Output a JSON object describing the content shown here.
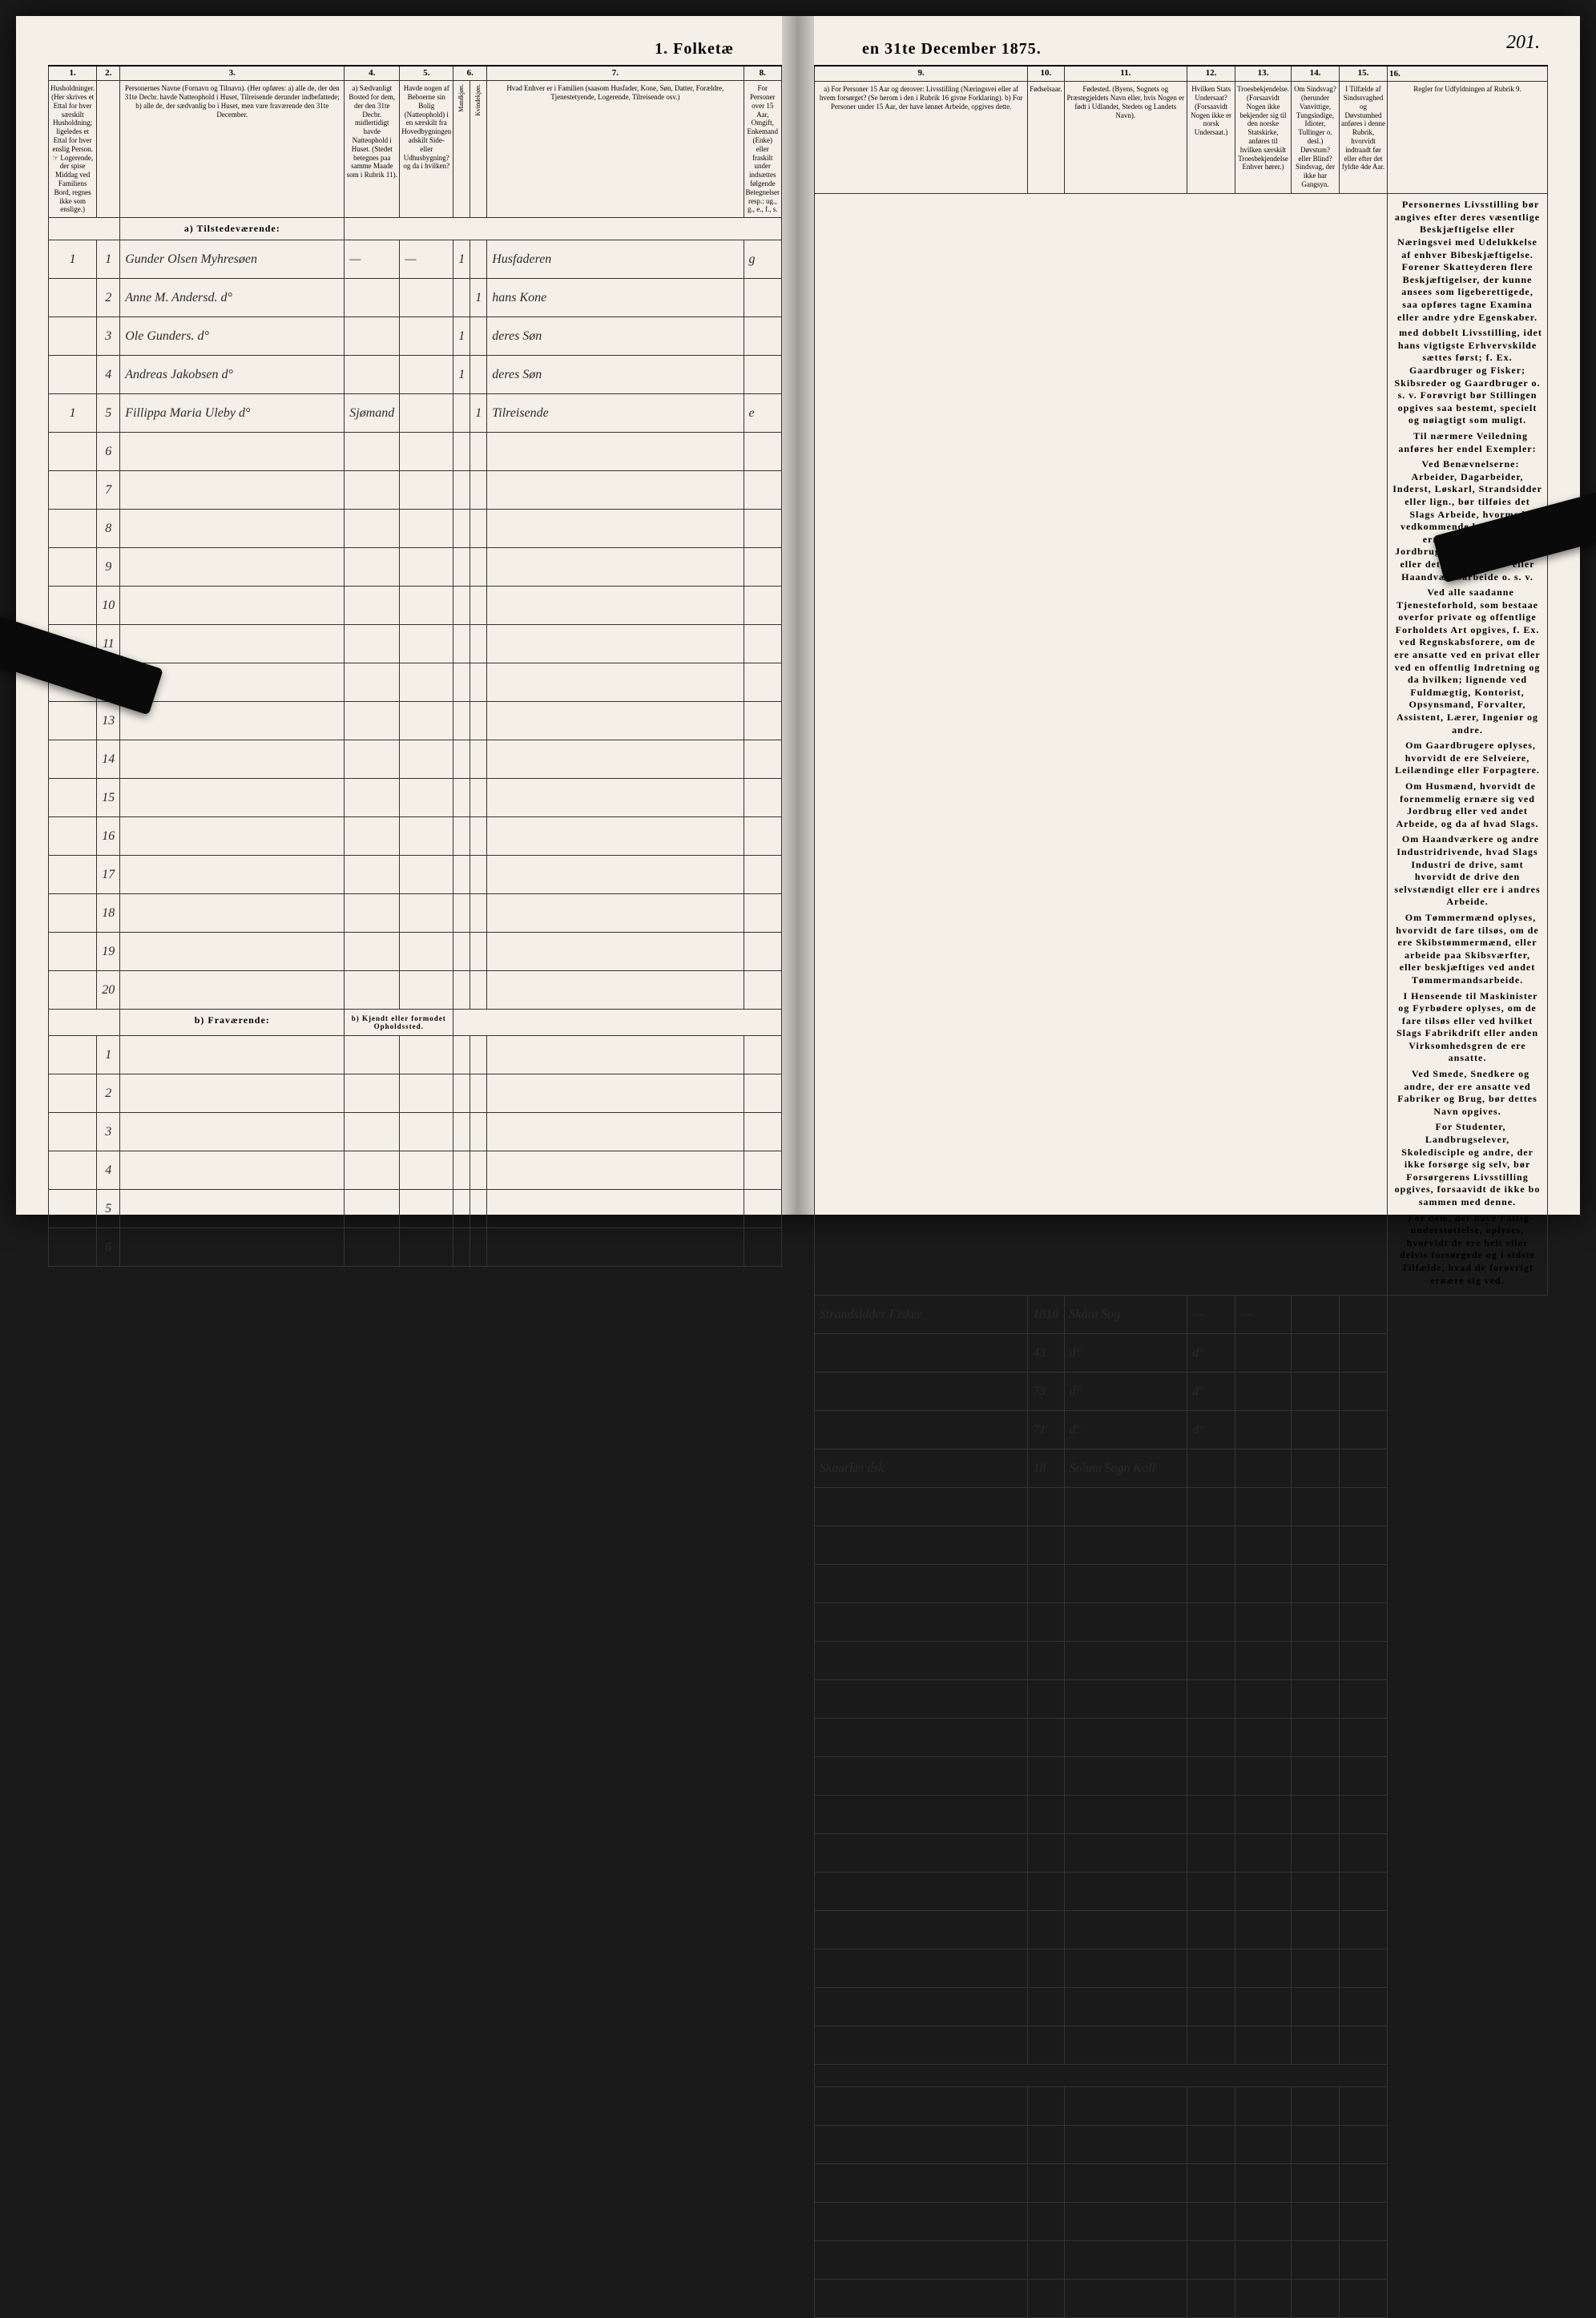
{
  "title_left": "1. Folketæ",
  "title_right": "en 31te December 1875.",
  "page_number": "201.",
  "columns_left": [
    "1.",
    "2.",
    "3.",
    "4.",
    "5.",
    "6.",
    "7.",
    "8."
  ],
  "columns_right": [
    "9.",
    "10.",
    "11.",
    "12.",
    "13.",
    "14.",
    "15.",
    "16."
  ],
  "headers_left": {
    "c1": "Husholdninger.\n(Her skrives et Ettal for hver særskilt Husholdning; ligeledes et Ettal for hver enslig Person.\n☞ Logerende, der spise Middag ved Familiens Bord, regnes ikke som enslige.)",
    "c2": "",
    "c3": "Personernes Navne (Fornavn og Tilnavn).\n(Her opføres:\na) alle de, der den 31te Decbr. havde Natteophold i Huset, Tilreisende derunder indbefattede;\nb) alle de, der sædvanlig bo i Huset, men vare fraværende den 31te December.",
    "c4": "a) Sædvanligt Bosted for dem, der den 31te Decbr. midlertidigt havde Natteophold i Huset.\n(Stedet betegnes paa samme Maade som i Rubrik 11).",
    "c5": "Havde nogen af Beboerne sin Bolig (Natteophold) i en særskilt fra Hovedbygningen adskilt Side- eller Udhusbygning? og da i hvilken?",
    "c6": "Kjøn.\n(Her sættes et Ettal i vedkommende Rubrik).",
    "c6a": "Mandkjøn.",
    "c6b": "Kvindekjøn.",
    "c7": "Hvad Enhver er i Familien\n(saasom Husfader, Kone, Søn, Datter, Forældre, Tjenestetyende, Logerende, Tilreisende osv.)",
    "c8": "For Personer over 15 Aar, Omgift, Enkemand (Enke) eller fraskilt under indsættes følgende Betegnelser resp.: ug., g., e., f., s."
  },
  "headers_right": {
    "c9": "a) For Personer 15 Aar og derover: Livsstilling (Næringsvei eller af hvem forsørget? (Se herom i den i Rubrik 16 givne Forklaring).\nb) For Personer under 15 Aar, der have lønnet Arbeide, opgives dette.",
    "c10": "Fødselsaar.",
    "c11": "Fødested.\n(Byens, Sognets og Præstegjeldets Navn eller, hvis Nogen er født i Udlandet, Stedets og Landets Navn).",
    "c12": "Hvilken Stats Undersaat?\n(Forsaavidt Nogen ikke er norsk Undersaat.)",
    "c13": "Troesbekjendelse.\n(Forsaavidt Nogen ikke bekjender sig til den norske Statskirke, anføres til hvilken særskilt Troesbekjendelse Enhver hører.)",
    "c14": "Om Sindsvag?\n(herunder Vanvittige, Tungsindige, Idioter, Tullinger o. desl.) Døvstum? eller Blind? Sindsvag, der ikke har Gangsyn.",
    "c15": "I Tilfælde af Sindssvaghed og Døvstumhed anføres i denne Rubrik, hvorvidt indtraadt før eller efter det fyldte 4de Aar.",
    "c16": "Regler for Udfyldningen af Rubrik 9."
  },
  "section_a": "a) Tilstedeværende:",
  "section_b": "b) Fraværende:",
  "section_b_note": "b) Kjendt eller formodet Opholdssted.",
  "rows": [
    {
      "hh": "1",
      "n": "1",
      "name": "Gunder Olsen Myhresøen",
      "c4": "—",
      "c5": "—",
      "m": "1",
      "k": "",
      "rel": "Husfaderen",
      "st": "g",
      "occ": "Strandsidder Fisker",
      "yr": "1816",
      "bp": "Skåtø Sog",
      "us": "—",
      "tb": "—"
    },
    {
      "hh": "",
      "n": "2",
      "name": "Anne M. Andersd.   d°",
      "c4": "",
      "c5": "",
      "m": "",
      "k": "1",
      "rel": "hans Kone",
      "st": "",
      "occ": "",
      "yr": "43",
      "bp": "d°",
      "us": "d°",
      "tb": ""
    },
    {
      "hh": "",
      "n": "3",
      "name": "Ole Gunders.   d°",
      "c4": "",
      "c5": "",
      "m": "1",
      "k": "",
      "rel": "deres Søn",
      "st": "",
      "occ": "",
      "yr": "73",
      "bp": "d°",
      "us": "d°",
      "tb": ""
    },
    {
      "hh": "",
      "n": "4",
      "name": "Andreas Jakobsen   d°",
      "c4": "",
      "c5": "",
      "m": "1",
      "k": "",
      "rel": "deres Søn",
      "st": "",
      "occ": "",
      "yr": "71",
      "bp": "d°",
      "us": "d°",
      "tb": ""
    },
    {
      "hh": "1",
      "n": "5",
      "name": "Fillippa Maria Uleby   d°",
      "c4": "Sjømand",
      "c5": "",
      "m": "",
      "k": "1",
      "rel": "Tilreisende",
      "st": "e",
      "occ": "Skaarkri dsk",
      "yr": "18",
      "bp": "Solum Sogn Koll",
      "us": "",
      "tb": ""
    }
  ],
  "empty_rows_a": [
    6,
    7,
    8,
    9,
    10,
    11,
    12,
    13,
    14,
    15,
    16,
    17,
    18,
    19,
    20
  ],
  "empty_rows_b": [
    1,
    2,
    3,
    4,
    5,
    6
  ],
  "rules_text": [
    "Personernes Livsstilling bør angives efter deres væsentlige Beskjæftigelse eller Næringsvei med Udelukkelse af enhver Bibeskjæftigelse. Forener Skatteyderen flere Beskjæftigelser, der kunne ansees som ligeberettigede, saa opføres tagne Examina eller andre ydre Egenskaber.",
    "med <b>dobbelt Livsstilling</b>, idet hans vigtigste Erhvervskilde sættes først; f. Ex. Gaardbruger og Fisker; Skibsreder og Gaardbruger o. s. v. Forøvrigt bør Stillingen opgives saa <b>bestemt, specielt og nøiagtigt</b> som muligt.",
    "Til nærmere Veiledning anføres her endel Exempler:",
    "Ved Benævnelserne: <b>Arbeider, Dagarbeider, Inderst, Løskarl, Strandsidder</b> eller lign., bør tilføies det Slags <b>Arbeide</b>, hvormed vedkommende hovedsagelig ernærer sig; f. Ex. Jordbrugsarbeide, Veiarbeide eller det Slags Fabrik- eller Haandværksarbeide o. s. v.",
    "Ved alle saadanne Tjenesteforhold, som bestaae overfor private og offentlige Forholdets Art opgives, f. Ex. ved Regnskabsforere, om de ere ansatte ved en privat eller ved en offentlig Indretning og da hvilken; lignende ved Fuldmægtig, Kontorist, Opsynsmand, Forvalter, Assistent, Lærer, Ingeniør og andre.",
    "Om <b>Gaardbrugere</b> oplyses, hvorvidt de ere Selveiere, Leilændinge eller Forpagtere.",
    "Om <b>Husmænd</b>, hvorvidt de fornemmelig ernære sig ved Jordbrug eller ved andet Arbeide, og da af hvad Slags.",
    "Om <b>Haandværkere og andre Industridrivende</b>, hvad Slags Industri de drive, samt hvorvidt de drive den selvstændigt eller ere i andres Arbeide.",
    "Om <b>Tømmermænd</b> oplyses, hvorvidt de fare tilsøs, om de ere Skibstømmermænd, eller arbeide paa Skibsværfter, eller beskjæftiges ved andet Tømmermandsarbeide.",
    "I Henseende til <b>Maskinister og Fyrbødere</b> oplyses, om de fare tilsøs eller ved hvilket Slags Fabrikdrift eller anden Virksomhedsgren de ere ansatte.",
    "<b>Ved Smede, Snedkere og andre</b>, der ere ansatte ved Fabriker og Brug, bør dettes Navn opgives.",
    "For <b>Studenter, Landbrugselever, Skoledisciple</b> og andre, der ikke forsørge sig selv, bør <b>Forsørgerens Livsstilling</b> opgives, forsaavidt de ikke bo sammen med denne.",
    "For dem, der have <b>Fattig-understøttelse</b>, oplyses, hvorvidt de ere helt eller delvis forsørgede og i sidste Tilfælde, hvad de forøvrigt ernære sig ved."
  ]
}
